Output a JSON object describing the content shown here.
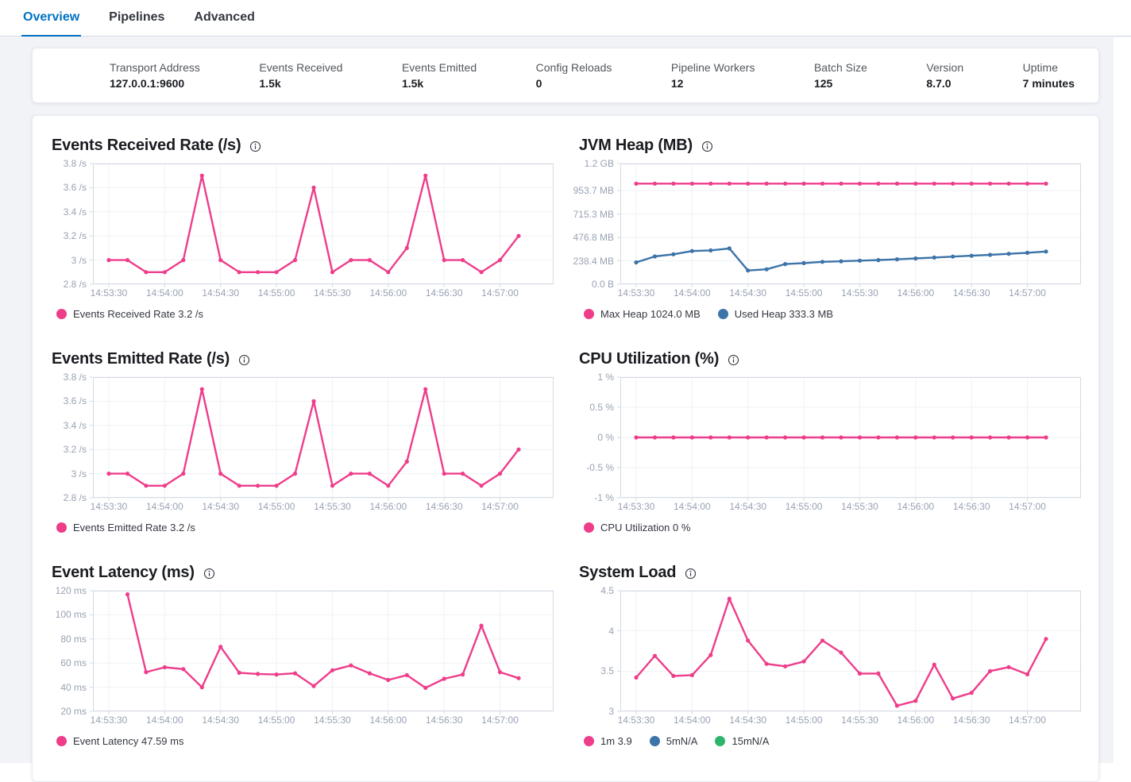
{
  "tabs": [
    {
      "label": "Overview",
      "active": true
    },
    {
      "label": "Pipelines",
      "active": false
    },
    {
      "label": "Advanced",
      "active": false
    }
  ],
  "summary": [
    {
      "label": "Transport Address",
      "value": "127.0.0.1:9600"
    },
    {
      "label": "Events Received",
      "value": "1.5k"
    },
    {
      "label": "Events Emitted",
      "value": "1.5k"
    },
    {
      "label": "Config Reloads",
      "value": "0"
    },
    {
      "label": "Pipeline Workers",
      "value": "12"
    },
    {
      "label": "Batch Size",
      "value": "125"
    },
    {
      "label": "Version",
      "value": "8.7.0"
    },
    {
      "label": "Uptime",
      "value": "7 minutes"
    }
  ],
  "colors": {
    "pink": "#EE3D8B",
    "blue": "#3C73A9",
    "green": "#2DB56B",
    "grid": "#EEF1F5",
    "border": "#D5DAE3",
    "tick_label": "#98A2B3",
    "active_tab": "#0071C2"
  },
  "chart_data": [
    {
      "type": "line",
      "title": "Events Received Rate (/s)",
      "x": [
        "14:53:30",
        "14:53:40",
        "14:53:50",
        "14:54:00",
        "14:54:10",
        "14:54:20",
        "14:54:30",
        "14:54:40",
        "14:54:50",
        "14:55:00",
        "14:55:10",
        "14:55:20",
        "14:55:30",
        "14:55:40",
        "14:55:50",
        "14:56:00",
        "14:56:10",
        "14:56:20",
        "14:56:30",
        "14:56:40",
        "14:56:50",
        "14:57:00",
        "14:57:10"
      ],
      "x_tick_indices": [
        0,
        3,
        6,
        9,
        12,
        15,
        18,
        21
      ],
      "ylim": [
        2.8,
        3.8
      ],
      "y_tick_values": [
        3.8,
        3.6,
        3.4,
        3.2,
        3.0,
        2.8
      ],
      "y_tick_labels": [
        "3.8 /s",
        "3.6 /s",
        "3.4 /s",
        "3.2 /s",
        "3 /s",
        "2.8 /s"
      ],
      "grid": true,
      "legend_position": "bottom",
      "series": [
        {
          "name": "Events Received Rate",
          "color": "pink",
          "values": [
            3,
            3,
            2.9,
            2.9,
            3,
            3.7,
            3,
            2.9,
            2.9,
            2.9,
            3,
            3.6,
            2.9,
            3,
            3,
            2.9,
            3.1,
            3.7,
            3,
            3,
            2.9,
            3,
            3.2
          ]
        }
      ],
      "legend": [
        {
          "label": "Events Received Rate 3.2 /s",
          "color": "pink"
        }
      ]
    },
    {
      "type": "line",
      "title": "JVM Heap (MB)",
      "x": [
        "14:53:30",
        "14:53:40",
        "14:53:50",
        "14:54:00",
        "14:54:10",
        "14:54:20",
        "14:54:30",
        "14:54:40",
        "14:54:50",
        "14:55:00",
        "14:55:10",
        "14:55:20",
        "14:55:30",
        "14:55:40",
        "14:55:50",
        "14:56:00",
        "14:56:10",
        "14:56:20",
        "14:56:30",
        "14:56:40",
        "14:56:50",
        "14:57:00",
        "14:57:10"
      ],
      "x_tick_indices": [
        0,
        3,
        6,
        9,
        12,
        15,
        18,
        21
      ],
      "ylim": [
        0,
        1228.8
      ],
      "y_tick_values": [
        1228.8,
        953.7,
        715.3,
        476.8,
        238.4,
        0
      ],
      "y_tick_labels": [
        "1.2 GB",
        "953.7 MB",
        "715.3 MB",
        "476.8 MB",
        "238.4 MB",
        "0.0 B"
      ],
      "grid": true,
      "legend_position": "bottom",
      "series": [
        {
          "name": "Max Heap",
          "color": "pink",
          "values": [
            1024,
            1024,
            1024,
            1024,
            1024,
            1024,
            1024,
            1024,
            1024,
            1024,
            1024,
            1024,
            1024,
            1024,
            1024,
            1024,
            1024,
            1024,
            1024,
            1024,
            1024,
            1024,
            1024
          ]
        },
        {
          "name": "Used Heap",
          "color": "blue",
          "values": [
            222,
            283,
            305,
            338,
            344,
            365,
            140,
            152,
            205,
            215,
            228,
            234,
            240,
            246,
            254,
            263,
            272,
            281,
            290,
            299,
            310,
            320,
            333.3
          ]
        }
      ],
      "legend": [
        {
          "label": "Max Heap 1024.0 MB",
          "color": "pink"
        },
        {
          "label": "Used Heap 333.3 MB",
          "color": "blue"
        }
      ]
    },
    {
      "type": "line",
      "title": "Events Emitted Rate (/s)",
      "x": [
        "14:53:30",
        "14:53:40",
        "14:53:50",
        "14:54:00",
        "14:54:10",
        "14:54:20",
        "14:54:30",
        "14:54:40",
        "14:54:50",
        "14:55:00",
        "14:55:10",
        "14:55:20",
        "14:55:30",
        "14:55:40",
        "14:55:50",
        "14:56:00",
        "14:56:10",
        "14:56:20",
        "14:56:30",
        "14:56:40",
        "14:56:50",
        "14:57:00",
        "14:57:10"
      ],
      "x_tick_indices": [
        0,
        3,
        6,
        9,
        12,
        15,
        18,
        21
      ],
      "ylim": [
        2.8,
        3.8
      ],
      "y_tick_values": [
        3.8,
        3.6,
        3.4,
        3.2,
        3.0,
        2.8
      ],
      "y_tick_labels": [
        "3.8 /s",
        "3.6 /s",
        "3.4 /s",
        "3.2 /s",
        "3 /s",
        "2.8 /s"
      ],
      "grid": true,
      "legend_position": "bottom",
      "series": [
        {
          "name": "Events Emitted Rate",
          "color": "pink",
          "values": [
            3,
            3,
            2.9,
            2.9,
            3,
            3.7,
            3,
            2.9,
            2.9,
            2.9,
            3,
            3.6,
            2.9,
            3,
            3,
            2.9,
            3.1,
            3.7,
            3,
            3,
            2.9,
            3,
            3.2
          ]
        }
      ],
      "legend": [
        {
          "label": "Events Emitted Rate 3.2 /s",
          "color": "pink"
        }
      ]
    },
    {
      "type": "line",
      "title": "CPU Utilization (%)",
      "x": [
        "14:53:30",
        "14:53:40",
        "14:53:50",
        "14:54:00",
        "14:54:10",
        "14:54:20",
        "14:54:30",
        "14:54:40",
        "14:54:50",
        "14:55:00",
        "14:55:10",
        "14:55:20",
        "14:55:30",
        "14:55:40",
        "14:55:50",
        "14:56:00",
        "14:56:10",
        "14:56:20",
        "14:56:30",
        "14:56:40",
        "14:56:50",
        "14:57:00",
        "14:57:10"
      ],
      "x_tick_indices": [
        0,
        3,
        6,
        9,
        12,
        15,
        18,
        21
      ],
      "ylim": [
        -1,
        1
      ],
      "y_tick_values": [
        1,
        0.5,
        0,
        -0.5,
        -1
      ],
      "y_tick_labels": [
        "1 %",
        "0.5 %",
        "0 %",
        "-0.5 %",
        "-1 %"
      ],
      "grid": true,
      "legend_position": "bottom",
      "series": [
        {
          "name": "CPU Utilization",
          "color": "pink",
          "values": [
            0,
            0,
            0,
            0,
            0,
            0,
            0,
            0,
            0,
            0,
            0,
            0,
            0,
            0,
            0,
            0,
            0,
            0,
            0,
            0,
            0,
            0,
            0
          ]
        }
      ],
      "legend": [
        {
          "label": "CPU Utilization 0 %",
          "color": "pink"
        }
      ]
    },
    {
      "type": "line",
      "title": "Event Latency (ms)",
      "x": [
        "14:53:30",
        "14:53:40",
        "14:53:50",
        "14:54:00",
        "14:54:10",
        "14:54:20",
        "14:54:30",
        "14:54:40",
        "14:54:50",
        "14:55:00",
        "14:55:10",
        "14:55:20",
        "14:55:30",
        "14:55:40",
        "14:55:50",
        "14:56:00",
        "14:56:10",
        "14:56:20",
        "14:56:30",
        "14:56:40",
        "14:56:50",
        "14:57:00",
        "14:57:10"
      ],
      "x_tick_indices": [
        0,
        3,
        6,
        9,
        12,
        15,
        18,
        21
      ],
      "ylim": [
        20,
        120
      ],
      "y_tick_values": [
        120,
        100,
        80,
        60,
        40,
        20
      ],
      "y_tick_labels": [
        "120 ms",
        "100 ms",
        "80 ms",
        "60 ms",
        "40 ms",
        "20 ms"
      ],
      "grid": true,
      "legend_position": "bottom",
      "series": [
        {
          "name": "Event Latency",
          "color": "pink",
          "values": [
            null,
            117,
            52.5,
            56.5,
            55,
            40,
            73.5,
            52,
            51,
            50.5,
            51.5,
            41,
            54,
            58,
            51.5,
            46,
            50,
            39.5,
            47,
            50.5,
            91,
            52.5,
            47.5
          ]
        }
      ],
      "legend": [
        {
          "label": "Event Latency 47.59 ms",
          "color": "pink"
        }
      ]
    },
    {
      "type": "line",
      "title": "System Load",
      "x": [
        "14:53:30",
        "14:53:40",
        "14:53:50",
        "14:54:00",
        "14:54:10",
        "14:54:20",
        "14:54:30",
        "14:54:40",
        "14:54:50",
        "14:55:00",
        "14:55:10",
        "14:55:20",
        "14:55:30",
        "14:55:40",
        "14:55:50",
        "14:56:00",
        "14:56:10",
        "14:56:20",
        "14:56:30",
        "14:56:40",
        "14:56:50",
        "14:57:00",
        "14:57:10"
      ],
      "x_tick_indices": [
        0,
        3,
        6,
        9,
        12,
        15,
        18,
        21
      ],
      "ylim": [
        3,
        4.5
      ],
      "y_tick_values": [
        4.5,
        4,
        3.5,
        3
      ],
      "y_tick_labels": [
        "4.5",
        "4",
        "3.5",
        "3"
      ],
      "grid": true,
      "legend_position": "bottom",
      "series": [
        {
          "name": "1m",
          "color": "pink",
          "values": [
            3.42,
            3.69,
            3.44,
            3.45,
            3.7,
            4.4,
            3.88,
            3.59,
            3.56,
            3.62,
            3.88,
            3.73,
            3.47,
            3.47,
            3.07,
            3.13,
            3.58,
            3.16,
            3.23,
            3.5,
            3.55,
            3.46,
            3.9
          ]
        }
      ],
      "legend": [
        {
          "label": "1m 3.9",
          "color": "pink"
        },
        {
          "label": "5mN/A",
          "color": "blue"
        },
        {
          "label": "15mN/A",
          "color": "green"
        }
      ]
    }
  ]
}
